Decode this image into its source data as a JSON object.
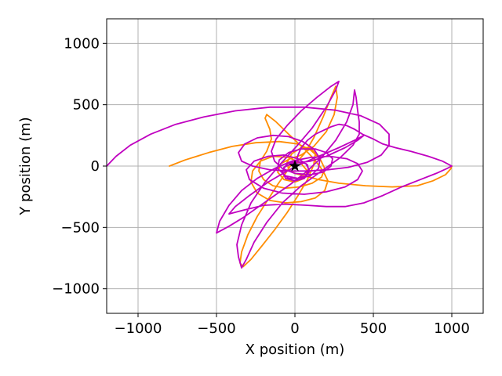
{
  "chart_data": {
    "type": "line",
    "title": "",
    "xlabel": "X position (m)",
    "ylabel": "Y position (m)",
    "xlim": [
      -1200,
      1200
    ],
    "ylim": [
      -1200,
      1200
    ],
    "grid": true,
    "xticks": [
      -1000,
      -500,
      0,
      500,
      1000
    ],
    "yticks": [
      -1000,
      -500,
      0,
      500,
      1000
    ],
    "xtick_labels": [
      "−1000",
      "−500",
      "0",
      "500",
      "1000"
    ],
    "ytick_labels": [
      "−1000",
      "−500",
      "0",
      "500",
      "1000"
    ],
    "series": [
      {
        "color": "#ff8c00",
        "points": [
          [
            -800,
            0
          ],
          [
            -700,
            50
          ],
          [
            -550,
            110
          ],
          [
            -400,
            160
          ],
          [
            -250,
            190
          ],
          [
            -100,
            200
          ],
          [
            20,
            180
          ],
          [
            100,
            130
          ],
          [
            160,
            60
          ],
          [
            190,
            -20
          ],
          [
            170,
            -90
          ],
          [
            110,
            -140
          ],
          [
            30,
            -170
          ],
          [
            -60,
            -180
          ],
          [
            -140,
            -160
          ],
          [
            -200,
            -110
          ],
          [
            -230,
            -40
          ],
          [
            -220,
            40
          ],
          [
            -180,
            120
          ],
          [
            -150,
            220
          ],
          [
            -160,
            300
          ],
          [
            -190,
            390
          ],
          [
            -180,
            420
          ],
          [
            -120,
            360
          ],
          [
            -40,
            260
          ],
          [
            60,
            140
          ],
          [
            120,
            60
          ],
          [
            180,
            -40
          ],
          [
            210,
            -120
          ],
          [
            190,
            -200
          ],
          [
            130,
            -260
          ],
          [
            40,
            -290
          ],
          [
            -60,
            -300
          ],
          [
            -160,
            -280
          ],
          [
            -240,
            -220
          ],
          [
            -280,
            -130
          ],
          [
            -270,
            -40
          ],
          [
            -220,
            40
          ],
          [
            -140,
            80
          ],
          [
            -40,
            70
          ],
          [
            40,
            20
          ],
          [
            80,
            -40
          ],
          [
            60,
            -100
          ],
          [
            0,
            -130
          ],
          [
            -70,
            -110
          ],
          [
            -110,
            -50
          ],
          [
            -90,
            20
          ],
          [
            -30,
            60
          ],
          [
            40,
            90
          ],
          [
            120,
            160
          ],
          [
            200,
            280
          ],
          [
            250,
            420
          ],
          [
            270,
            560
          ],
          [
            260,
            650
          ],
          [
            230,
            560
          ],
          [
            180,
            400
          ],
          [
            120,
            230
          ],
          [
            60,
            100
          ],
          [
            10,
            30
          ],
          [
            -30,
            0
          ],
          [
            -60,
            -60
          ],
          [
            -110,
            -150
          ],
          [
            -170,
            -270
          ],
          [
            -240,
            -410
          ],
          [
            -300,
            -560
          ],
          [
            -340,
            -700
          ],
          [
            -350,
            -790
          ],
          [
            -330,
            -820
          ],
          [
            -280,
            -760
          ],
          [
            -210,
            -650
          ],
          [
            -130,
            -520
          ],
          [
            -50,
            -380
          ],
          [
            20,
            -240
          ],
          [
            80,
            -110
          ],
          [
            120,
            10
          ],
          [
            130,
            100
          ],
          [
            100,
            150
          ],
          [
            40,
            150
          ],
          [
            -20,
            100
          ],
          [
            -50,
            30
          ],
          [
            -40,
            -30
          ],
          [
            0,
            -60
          ],
          [
            60,
            -80
          ],
          [
            150,
            -110
          ],
          [
            280,
            -140
          ],
          [
            450,
            -160
          ],
          [
            620,
            -170
          ],
          [
            780,
            -160
          ],
          [
            880,
            -120
          ],
          [
            960,
            -70
          ],
          [
            995,
            -20
          ],
          [
            1000,
            0
          ]
        ]
      },
      {
        "color": "#c000c0",
        "points": [
          [
            -1200,
            0
          ],
          [
            -1140,
            80
          ],
          [
            -1050,
            170
          ],
          [
            -920,
            260
          ],
          [
            -760,
            340
          ],
          [
            -580,
            400
          ],
          [
            -380,
            450
          ],
          [
            -160,
            480
          ],
          [
            60,
            480
          ],
          [
            260,
            455
          ],
          [
            420,
            410
          ],
          [
            540,
            340
          ],
          [
            600,
            260
          ],
          [
            600,
            170
          ],
          [
            550,
            90
          ],
          [
            460,
            30
          ],
          [
            340,
            -10
          ],
          [
            210,
            -30
          ],
          [
            80,
            -40
          ],
          [
            -40,
            -40
          ],
          [
            -160,
            -30
          ],
          [
            -270,
            0
          ],
          [
            -340,
            40
          ],
          [
            -360,
            110
          ],
          [
            -320,
            180
          ],
          [
            -240,
            230
          ],
          [
            -140,
            250
          ],
          [
            -40,
            240
          ],
          [
            50,
            200
          ],
          [
            120,
            140
          ],
          [
            160,
            60
          ],
          [
            150,
            -20
          ],
          [
            100,
            -80
          ],
          [
            20,
            -100
          ],
          [
            -60,
            -80
          ],
          [
            -110,
            -20
          ],
          [
            -100,
            50
          ],
          [
            -40,
            110
          ],
          [
            40,
            140
          ],
          [
            130,
            140
          ],
          [
            200,
            110
          ],
          [
            240,
            60
          ],
          [
            230,
            0
          ],
          [
            180,
            -50
          ],
          [
            100,
            -70
          ],
          [
            0,
            -60
          ],
          [
            -80,
            -20
          ],
          [
            -130,
            40
          ],
          [
            -150,
            120
          ],
          [
            -120,
            220
          ],
          [
            -50,
            330
          ],
          [
            40,
            450
          ],
          [
            140,
            560
          ],
          [
            230,
            650
          ],
          [
            280,
            690
          ],
          [
            260,
            620
          ],
          [
            200,
            480
          ],
          [
            110,
            310
          ],
          [
            10,
            160
          ],
          [
            -90,
            20
          ],
          [
            -190,
            -130
          ],
          [
            -280,
            -300
          ],
          [
            -340,
            -480
          ],
          [
            -370,
            -640
          ],
          [
            -360,
            -740
          ],
          [
            -340,
            -830
          ],
          [
            -310,
            -760
          ],
          [
            -260,
            -620
          ],
          [
            -180,
            -460
          ],
          [
            -80,
            -300
          ],
          [
            40,
            -160
          ],
          [
            170,
            -40
          ],
          [
            290,
            70
          ],
          [
            370,
            170
          ],
          [
            410,
            260
          ],
          [
            410,
            360
          ],
          [
            400,
            450
          ],
          [
            390,
            560
          ],
          [
            380,
            620
          ],
          [
            370,
            500
          ],
          [
            330,
            360
          ],
          [
            260,
            210
          ],
          [
            170,
            70
          ],
          [
            70,
            -50
          ],
          [
            -30,
            -150
          ],
          [
            -130,
            -240
          ],
          [
            -230,
            -330
          ],
          [
            -330,
            -420
          ],
          [
            -420,
            -490
          ],
          [
            -500,
            -545
          ],
          [
            -480,
            -450
          ],
          [
            -420,
            -320
          ],
          [
            -340,
            -200
          ],
          [
            -240,
            -100
          ],
          [
            -130,
            -20
          ],
          [
            -20,
            40
          ],
          [
            100,
            70
          ],
          [
            220,
            80
          ],
          [
            330,
            60
          ],
          [
            400,
            20
          ],
          [
            430,
            -40
          ],
          [
            400,
            -110
          ],
          [
            320,
            -170
          ],
          [
            200,
            -210
          ],
          [
            60,
            -230
          ],
          [
            -80,
            -220
          ],
          [
            -200,
            -180
          ],
          [
            -290,
            -110
          ],
          [
            -310,
            -30
          ],
          [
            -260,
            40
          ],
          [
            -170,
            80
          ],
          [
            -70,
            90
          ],
          [
            20,
            60
          ],
          [
            80,
            10
          ],
          [
            90,
            -50
          ],
          [
            60,
            -100
          ],
          [
            0,
            -120
          ],
          [
            -60,
            -100
          ],
          [
            -80,
            -40
          ],
          [
            -50,
            20
          ],
          [
            10,
            40
          ],
          [
            70,
            20
          ],
          [
            90,
            -30
          ],
          [
            70,
            -80
          ],
          [
            20,
            -100
          ],
          [
            -40,
            -100
          ],
          [
            -80,
            -60
          ],
          [
            -70,
            -10
          ],
          [
            -20,
            20
          ],
          [
            40,
            30
          ],
          [
            100,
            40
          ],
          [
            200,
            80
          ],
          [
            320,
            150
          ],
          [
            400,
            210
          ],
          [
            440,
            250
          ],
          [
            380,
            210
          ],
          [
            280,
            150
          ],
          [
            170,
            90
          ],
          [
            60,
            30
          ],
          [
            -50,
            -40
          ],
          [
            -170,
            -130
          ],
          [
            -290,
            -240
          ],
          [
            -380,
            -330
          ],
          [
            -420,
            -390
          ],
          [
            -330,
            -360
          ],
          [
            -200,
            -320
          ],
          [
            -60,
            -310
          ],
          [
            80,
            -320
          ],
          [
            200,
            -330
          ],
          [
            320,
            -330
          ],
          [
            440,
            -300
          ],
          [
            560,
            -240
          ],
          [
            680,
            -170
          ],
          [
            800,
            -110
          ],
          [
            900,
            -60
          ],
          [
            970,
            -20
          ],
          [
            1000,
            0
          ],
          [
            940,
            40
          ],
          [
            850,
            80
          ],
          [
            740,
            120
          ],
          [
            640,
            150
          ],
          [
            560,
            180
          ],
          [
            500,
            220
          ],
          [
            430,
            260
          ],
          [
            380,
            300
          ],
          [
            330,
            330
          ],
          [
            280,
            340
          ],
          [
            230,
            320
          ],
          [
            180,
            290
          ],
          [
            130,
            260
          ],
          [
            80,
            210
          ],
          [
            40,
            150
          ],
          [
            20,
            90
          ],
          [
            10,
            40
          ],
          [
            0,
            0
          ]
        ]
      }
    ],
    "marker": {
      "x": 0,
      "y": 0,
      "symbol": "star",
      "color": "#000000"
    }
  }
}
